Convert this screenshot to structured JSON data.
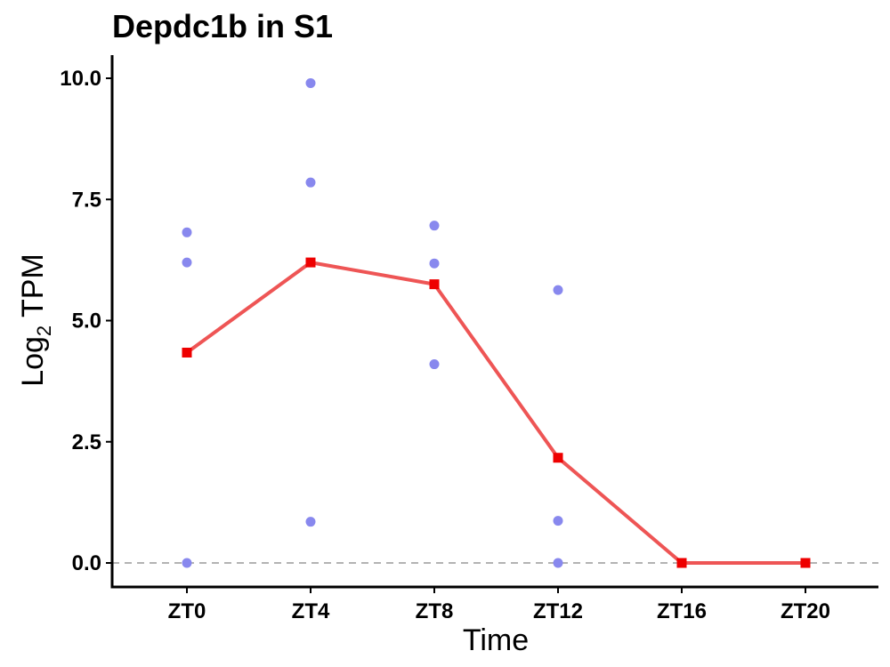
{
  "chart_data": {
    "type": "line",
    "title": "Depdc1b in S1",
    "xlabel": "Time",
    "ylabel_main": "Log",
    "ylabel_sub": "2",
    "ylabel_rest": " TPM",
    "categories": [
      "ZT0",
      "ZT4",
      "ZT8",
      "ZT12",
      "ZT16",
      "ZT20"
    ],
    "ylim": [
      -0.5,
      10.4
    ],
    "yticks": [
      0,
      2.5,
      5,
      7.5,
      10
    ],
    "ytick_labels": [
      "0.0",
      "2.5",
      "5.0",
      "7.5",
      "10.0"
    ],
    "reference_line_y": 0,
    "grid": false,
    "series": [
      {
        "kind": "replicates",
        "color": "#8888ee",
        "points": [
          {
            "x": "ZT0",
            "y": 6.82
          },
          {
            "x": "ZT0",
            "y": 6.2
          },
          {
            "x": "ZT0",
            "y": 0
          },
          {
            "x": "ZT4",
            "y": 9.9
          },
          {
            "x": "ZT4",
            "y": 7.85
          },
          {
            "x": "ZT4",
            "y": 0.85
          },
          {
            "x": "ZT8",
            "y": 6.96
          },
          {
            "x": "ZT8",
            "y": 6.18
          },
          {
            "x": "ZT8",
            "y": 4.1
          },
          {
            "x": "ZT12",
            "y": 5.63
          },
          {
            "x": "ZT12",
            "y": 0.87
          },
          {
            "x": "ZT12",
            "y": 0
          }
        ]
      },
      {
        "kind": "mean",
        "color": "#ee5555",
        "marker_color": "#ee0000",
        "values": [
          4.34,
          6.2,
          5.75,
          2.17,
          0,
          0
        ]
      }
    ]
  }
}
